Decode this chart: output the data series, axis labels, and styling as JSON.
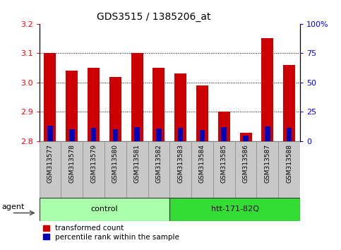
{
  "title": "GDS3515 / 1385206_at",
  "samples": [
    "GSM313577",
    "GSM313578",
    "GSM313579",
    "GSM313580",
    "GSM313581",
    "GSM313582",
    "GSM313583",
    "GSM313584",
    "GSM313585",
    "GSM313586",
    "GSM313587",
    "GSM313588"
  ],
  "red_values": [
    3.1,
    3.04,
    3.05,
    3.02,
    3.1,
    3.05,
    3.03,
    2.99,
    2.9,
    2.83,
    3.15,
    3.06
  ],
  "blue_values_abs": [
    2.853,
    2.84,
    2.845,
    2.842,
    2.848,
    2.843,
    2.845,
    2.838,
    2.848,
    2.82,
    2.851,
    2.845
  ],
  "blue_heights": [
    0.053,
    0.04,
    0.045,
    0.042,
    0.048,
    0.043,
    0.045,
    0.038,
    0.048,
    0.02,
    0.051,
    0.045
  ],
  "bar_bottom": 2.8,
  "ylim_left": [
    2.8,
    3.2
  ],
  "ylim_right": [
    0,
    100
  ],
  "yticks_left": [
    2.8,
    2.9,
    3.0,
    3.1,
    3.2
  ],
  "yticks_right": [
    0,
    25,
    50,
    75,
    100
  ],
  "ytick_labels_right": [
    "0",
    "25",
    "50",
    "75",
    "100%"
  ],
  "group_control": {
    "label": "control",
    "start": 0,
    "end": 5,
    "color": "#AAFFAA"
  },
  "group_htt": {
    "label": "htt-171-82Q",
    "start": 6,
    "end": 11,
    "color": "#33DD33"
  },
  "agent_label": "agent",
  "red_color": "#CC0000",
  "blue_color": "#0000BB",
  "legend_red": "transformed count",
  "legend_blue": "percentile rank within the sample",
  "bar_width": 0.55,
  "gray_bg": "#C8C8C8",
  "tick_label_fontsize": 6.5,
  "title_fontsize": 10
}
